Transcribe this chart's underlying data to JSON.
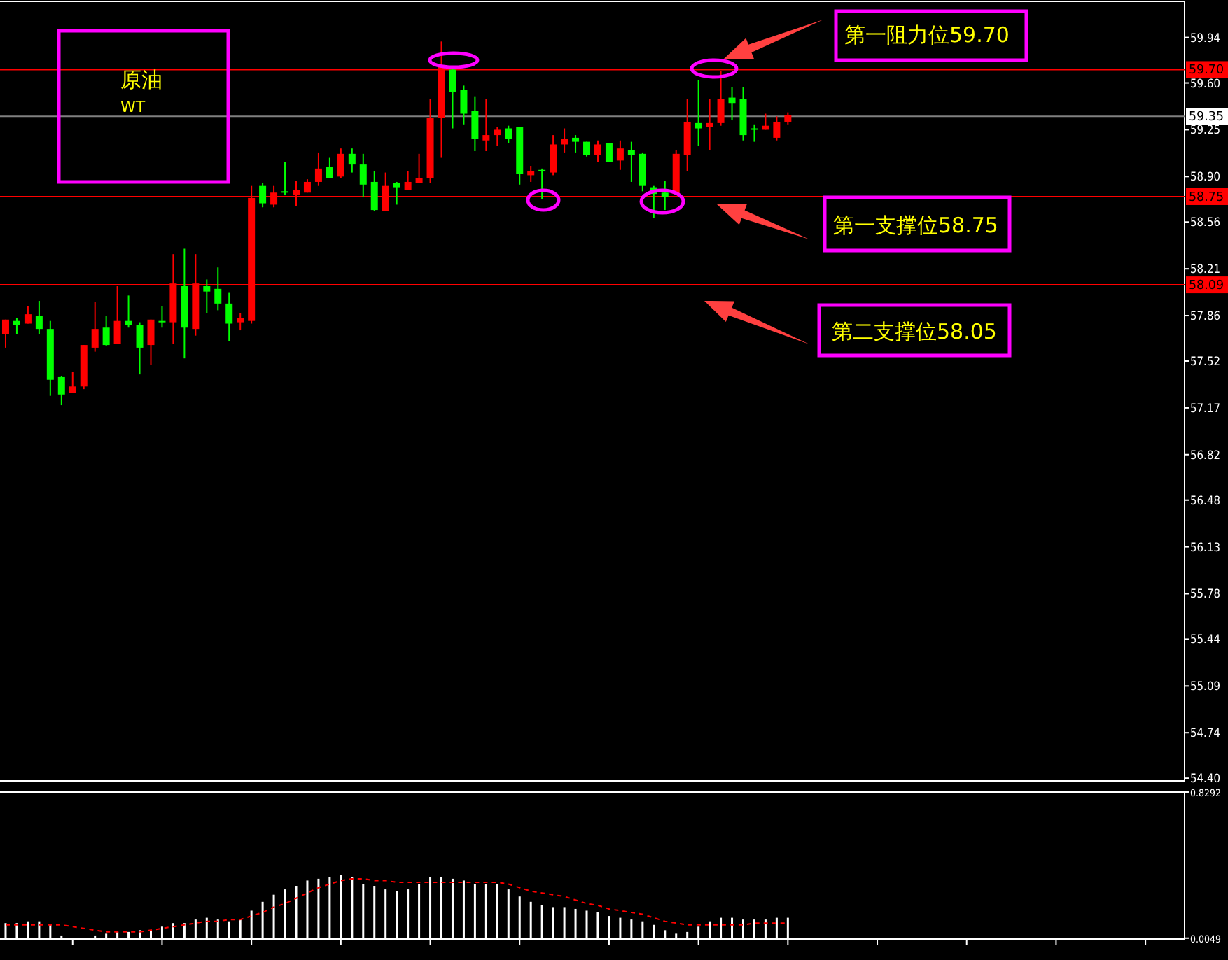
{
  "chart_data": [
    {
      "type": "candlestick",
      "categories": [
        null,
        null,
        null,
        null,
        null,
        null,
        null,
        null,
        null,
        null,
        null,
        null,
        null,
        null,
        null,
        null,
        null,
        null,
        null,
        null,
        null,
        null,
        null,
        null,
        null,
        null,
        null,
        null,
        null,
        null,
        null,
        null,
        null,
        null,
        null,
        null,
        null,
        null,
        null,
        null,
        null,
        null,
        null,
        null,
        null,
        null,
        null,
        null,
        null,
        null,
        null,
        null,
        null,
        null,
        null,
        null,
        null,
        null,
        null,
        null,
        null,
        null,
        null,
        null,
        null,
        null,
        null,
        null,
        null,
        null,
        null,
        null,
        null,
        null,
        null,
        null,
        null,
        null,
        null,
        null,
        null,
        null,
        null,
        null,
        null,
        null,
        null,
        null,
        null,
        null,
        null,
        null,
        null,
        null,
        null,
        null,
        null,
        null,
        null,
        null,
        null,
        null,
        null,
        null,
        null,
        null
      ],
      "ohlc": [
        [
          57.72,
          57.83,
          57.62,
          57.83
        ],
        [
          57.82,
          57.84,
          57.72,
          57.79
        ],
        [
          57.8,
          57.93,
          57.8,
          57.87
        ],
        [
          57.86,
          57.97,
          57.72,
          57.76
        ],
        [
          57.76,
          57.82,
          57.26,
          57.38
        ],
        [
          57.4,
          57.41,
          57.19,
          57.27
        ],
        [
          57.28,
          57.44,
          57.28,
          57.33
        ],
        [
          57.33,
          57.64,
          57.31,
          57.64
        ],
        [
          57.62,
          57.96,
          57.59,
          57.76
        ],
        [
          57.77,
          57.86,
          57.63,
          57.64
        ],
        [
          57.65,
          58.08,
          57.65,
          57.82
        ],
        [
          57.82,
          58.01,
          57.77,
          57.79
        ],
        [
          57.79,
          57.81,
          57.42,
          57.62
        ],
        [
          57.64,
          57.83,
          57.49,
          57.83
        ],
        [
          57.82,
          57.93,
          57.77,
          57.81
        ],
        [
          57.81,
          58.32,
          57.65,
          58.1
        ],
        [
          58.08,
          58.36,
          57.54,
          57.77
        ],
        [
          57.76,
          58.32,
          57.71,
          58.1
        ],
        [
          58.08,
          58.13,
          57.88,
          58.04
        ],
        [
          58.06,
          58.22,
          57.9,
          57.95
        ],
        [
          57.95,
          58.03,
          57.67,
          57.8
        ],
        [
          57.81,
          57.88,
          57.75,
          57.84
        ],
        [
          57.82,
          58.83,
          57.8,
          58.74
        ],
        [
          58.83,
          58.85,
          58.67,
          58.7
        ],
        [
          58.69,
          58.83,
          58.67,
          58.78
        ],
        [
          58.79,
          59.01,
          58.76,
          58.78
        ],
        [
          58.76,
          58.87,
          58.68,
          58.8
        ],
        [
          58.78,
          58.88,
          58.78,
          58.86
        ],
        [
          58.86,
          59.08,
          58.83,
          58.96
        ],
        [
          58.97,
          59.04,
          58.89,
          58.89
        ],
        [
          58.9,
          59.11,
          58.89,
          59.07
        ],
        [
          59.07,
          59.11,
          58.93,
          58.99
        ],
        [
          58.99,
          59.07,
          58.75,
          58.84
        ],
        [
          58.86,
          58.94,
          58.64,
          58.65
        ],
        [
          58.64,
          58.93,
          58.64,
          58.83
        ],
        [
          58.85,
          58.86,
          58.69,
          58.82
        ],
        [
          58.8,
          58.94,
          58.8,
          58.86
        ],
        [
          58.85,
          59.07,
          58.85,
          58.89
        ],
        [
          58.89,
          59.48,
          58.85,
          59.34
        ],
        [
          59.34,
          59.91,
          59.04,
          59.72
        ],
        [
          59.7,
          59.72,
          59.26,
          59.53
        ],
        [
          59.55,
          59.58,
          59.29,
          59.37
        ],
        [
          59.39,
          59.5,
          59.09,
          59.18
        ],
        [
          59.17,
          59.48,
          59.09,
          59.21
        ],
        [
          59.21,
          59.27,
          59.13,
          59.25
        ],
        [
          59.26,
          59.28,
          59.15,
          59.18
        ],
        [
          59.27,
          59.27,
          58.84,
          58.92
        ],
        [
          58.91,
          58.98,
          58.86,
          58.94
        ],
        [
          58.95,
          58.96,
          58.73,
          58.94
        ],
        [
          58.93,
          59.21,
          58.91,
          59.14
        ],
        [
          59.14,
          59.26,
          59.08,
          59.18
        ],
        [
          59.19,
          59.21,
          59.08,
          59.16
        ],
        [
          59.16,
          59.16,
          59.05,
          59.06
        ],
        [
          59.06,
          59.17,
          59.01,
          59.14
        ],
        [
          59.15,
          59.15,
          59.01,
          59.01
        ],
        [
          59.02,
          59.17,
          58.95,
          59.11
        ],
        [
          59.1,
          59.16,
          58.86,
          59.06
        ],
        [
          59.07,
          59.08,
          58.79,
          58.83
        ],
        [
          58.82,
          58.83,
          58.59,
          58.77
        ],
        [
          58.78,
          58.87,
          58.65,
          58.75
        ],
        [
          58.77,
          59.1,
          58.77,
          59.07
        ],
        [
          59.06,
          59.48,
          58.94,
          59.31
        ],
        [
          59.3,
          59.62,
          59.13,
          59.26
        ],
        [
          59.27,
          59.48,
          59.1,
          59.3
        ],
        [
          59.3,
          59.69,
          59.28,
          59.48
        ],
        [
          59.49,
          59.57,
          59.32,
          59.45
        ],
        [
          59.48,
          59.57,
          59.17,
          59.21
        ],
        [
          59.26,
          59.29,
          59.16,
          59.25
        ],
        [
          59.25,
          59.37,
          59.25,
          59.28
        ],
        [
          59.19,
          59.35,
          59.17,
          59.31
        ],
        [
          59.31,
          59.38,
          59.29,
          59.36
        ],
        null,
        null,
        null,
        null,
        null,
        null,
        null,
        null,
        null,
        null,
        null,
        null,
        null,
        null,
        null,
        null,
        null,
        null,
        null,
        null,
        null,
        null,
        null,
        null,
        null,
        null,
        null,
        null,
        null,
        null,
        null,
        null,
        null,
        null,
        null
      ],
      "colors": [
        "#ff0000",
        "#00ff00",
        "#ff0000",
        "#00ff00",
        "#00ff00",
        "#00ff00",
        "#ff0000",
        "#ff0000",
        "#ff0000",
        "#00ff00",
        "#ff0000",
        "#00ff00",
        "#00ff00",
        "#ff0000",
        "#00ff00",
        "#ff0000",
        "#00ff00",
        "#ff0000",
        "#00ff00",
        "#00ff00",
        "#00ff00",
        "#ff0000",
        "#ff0000",
        "#00ff00",
        "#ff0000",
        "#00ff00",
        "#ff0000",
        "#ff0000",
        "#ff0000",
        "#00ff00",
        "#ff0000",
        "#00ff00",
        "#00ff00",
        "#00ff00",
        "#ff0000",
        "#00ff00",
        "#ff0000",
        "#ff0000",
        "#ff0000",
        "#ff0000",
        "#00ff00",
        "#00ff00",
        "#00ff00",
        "#ff0000",
        "#ff0000",
        "#00ff00",
        "#00ff00",
        "#ff0000",
        "#00ff00",
        "#ff0000",
        "#ff0000",
        "#00ff00",
        "#00ff00",
        "#ff0000",
        "#00ff00",
        "#ff0000",
        "#00ff00",
        "#00ff00",
        "#00ff00",
        "#00ff00",
        "#ff0000",
        "#ff0000",
        "#00ff00",
        "#ff0000",
        "#ff0000",
        "#00ff00",
        "#00ff00",
        "#00ff00",
        "#ff0000",
        "#ff0000",
        "#ff0000",
        null,
        null,
        null,
        null,
        null,
        null,
        null,
        null,
        null,
        null,
        null,
        null,
        null,
        null,
        null,
        null,
        null,
        null,
        null,
        null,
        null,
        null,
        null,
        null,
        null,
        null,
        null,
        null,
        null,
        null,
        null,
        null,
        null,
        null,
        null
      ],
      "ylim": [
        54.38,
        60.21
      ],
      "yticks": [
        59.94,
        {
          "value": 59.6,
          "label": "59.60"
        },
        59.25,
        {
          "value": 58.9,
          "label": "58.90"
        },
        58.56,
        58.21,
        57.86,
        57.52,
        57.17,
        56.82,
        56.48,
        56.13,
        55.78,
        55.44,
        55.09,
        54.74,
        {
          "value": 54.4,
          "label": "54.40"
        }
      ],
      "ref_lines": [
        {
          "axis": "y",
          "value": 59.7,
          "label": "59.70",
          "color": "#ff0000"
        },
        {
          "axis": "y",
          "value": 59.35,
          "label": "59.35",
          "color": "#808080"
        },
        {
          "axis": "y",
          "value": 58.75,
          "label": "58.75",
          "color": "#ff0000"
        },
        {
          "axis": "y",
          "value": 58.09,
          "label": "58.09",
          "color": "#ff0000"
        }
      ],
      "annotations": [
        "原油",
        "WT",
        "第一阻力位59.70",
        "第一支撑位58.75",
        "第二支撑位58.05"
      ]
    },
    {
      "type": "bar",
      "categories": [
        null,
        null,
        null,
        null,
        null,
        null,
        null,
        null,
        null,
        null,
        null,
        null,
        null,
        null,
        null,
        null,
        null,
        null,
        null,
        null,
        null,
        null,
        null,
        null,
        null,
        null,
        null,
        null,
        null,
        null,
        null,
        null,
        null,
        null,
        null,
        null,
        null,
        null,
        null,
        null,
        null,
        null,
        null,
        null,
        null,
        null,
        null,
        null,
        null,
        null,
        null,
        null,
        null,
        null,
        null,
        null,
        null,
        null,
        null,
        null,
        null,
        null,
        null,
        null,
        null,
        null,
        null,
        null,
        null,
        null,
        null,
        null,
        null,
        null,
        null,
        null,
        null,
        null,
        null,
        null,
        null,
        null,
        null,
        null,
        null,
        null,
        null,
        null,
        null,
        null,
        null,
        null,
        null,
        null,
        null,
        null,
        null,
        null,
        null,
        null,
        null,
        null,
        null,
        null,
        null,
        null
      ],
      "series": [
        {
          "type": "bar",
          "color": "#ffffff",
          "values": [
            0.09,
            0.09,
            0.1,
            0.1,
            0.08,
            0.02,
            null,
            null,
            0.02,
            0.03,
            0.04,
            0.04,
            0.05,
            0.05,
            0.07,
            0.09,
            0.09,
            0.11,
            0.12,
            0.11,
            0.1,
            0.11,
            0.16,
            0.21,
            0.25,
            0.28,
            0.3,
            0.33,
            0.34,
            0.35,
            0.36,
            0.35,
            0.31,
            0.3,
            0.28,
            0.27,
            0.28,
            0.31,
            0.35,
            0.35,
            0.34,
            0.33,
            0.31,
            0.31,
            0.31,
            0.28,
            0.24,
            0.21,
            0.19,
            0.18,
            0.18,
            0.17,
            0.16,
            0.15,
            0.13,
            0.12,
            0.11,
            0.1,
            0.08,
            0.05,
            0.03,
            0.04,
            0.07,
            0.1,
            0.12,
            0.12,
            0.11,
            0.11,
            0.11,
            0.12,
            0.12,
            null,
            null,
            null,
            null,
            null,
            null,
            null,
            null,
            null,
            null,
            null,
            null,
            null,
            null,
            null,
            null,
            null,
            null,
            null,
            null,
            null,
            null,
            null,
            null,
            null,
            null,
            null,
            null,
            null,
            null,
            null,
            null,
            null,
            null,
            null
          ]
        },
        {
          "type": "line",
          "color": "#ff0000",
          "line_style": "dashed",
          "values": [
            0.08,
            0.08,
            0.08,
            0.08,
            0.08,
            0.08,
            0.07,
            0.06,
            0.05,
            0.04,
            0.04,
            0.04,
            0.04,
            0.05,
            0.06,
            0.07,
            0.08,
            0.09,
            0.1,
            0.1,
            0.11,
            0.11,
            0.13,
            0.15,
            0.18,
            0.2,
            0.23,
            0.26,
            0.29,
            0.31,
            0.33,
            0.34,
            0.34,
            0.33,
            0.33,
            0.32,
            0.32,
            0.32,
            0.32,
            0.32,
            0.32,
            0.32,
            0.32,
            0.32,
            0.32,
            0.31,
            0.29,
            0.27,
            0.26,
            0.25,
            0.24,
            0.22,
            0.2,
            0.19,
            0.17,
            0.16,
            0.15,
            0.14,
            0.12,
            0.1,
            0.09,
            0.08,
            0.08,
            0.08,
            0.08,
            0.08,
            0.08,
            0.09,
            0.09,
            0.09,
            0.09,
            null,
            null,
            null,
            null,
            null,
            null,
            null,
            null,
            null,
            null,
            null,
            null,
            null,
            null,
            null,
            null,
            null,
            null,
            null,
            null,
            null,
            null,
            null,
            null,
            null,
            null,
            null,
            null,
            null,
            null,
            null,
            null,
            null,
            null,
            null
          ]
        }
      ],
      "ylim": [
        0,
        0.8292
      ],
      "yticks": [
        0.0049,
        0.8292
      ]
    }
  ]
}
